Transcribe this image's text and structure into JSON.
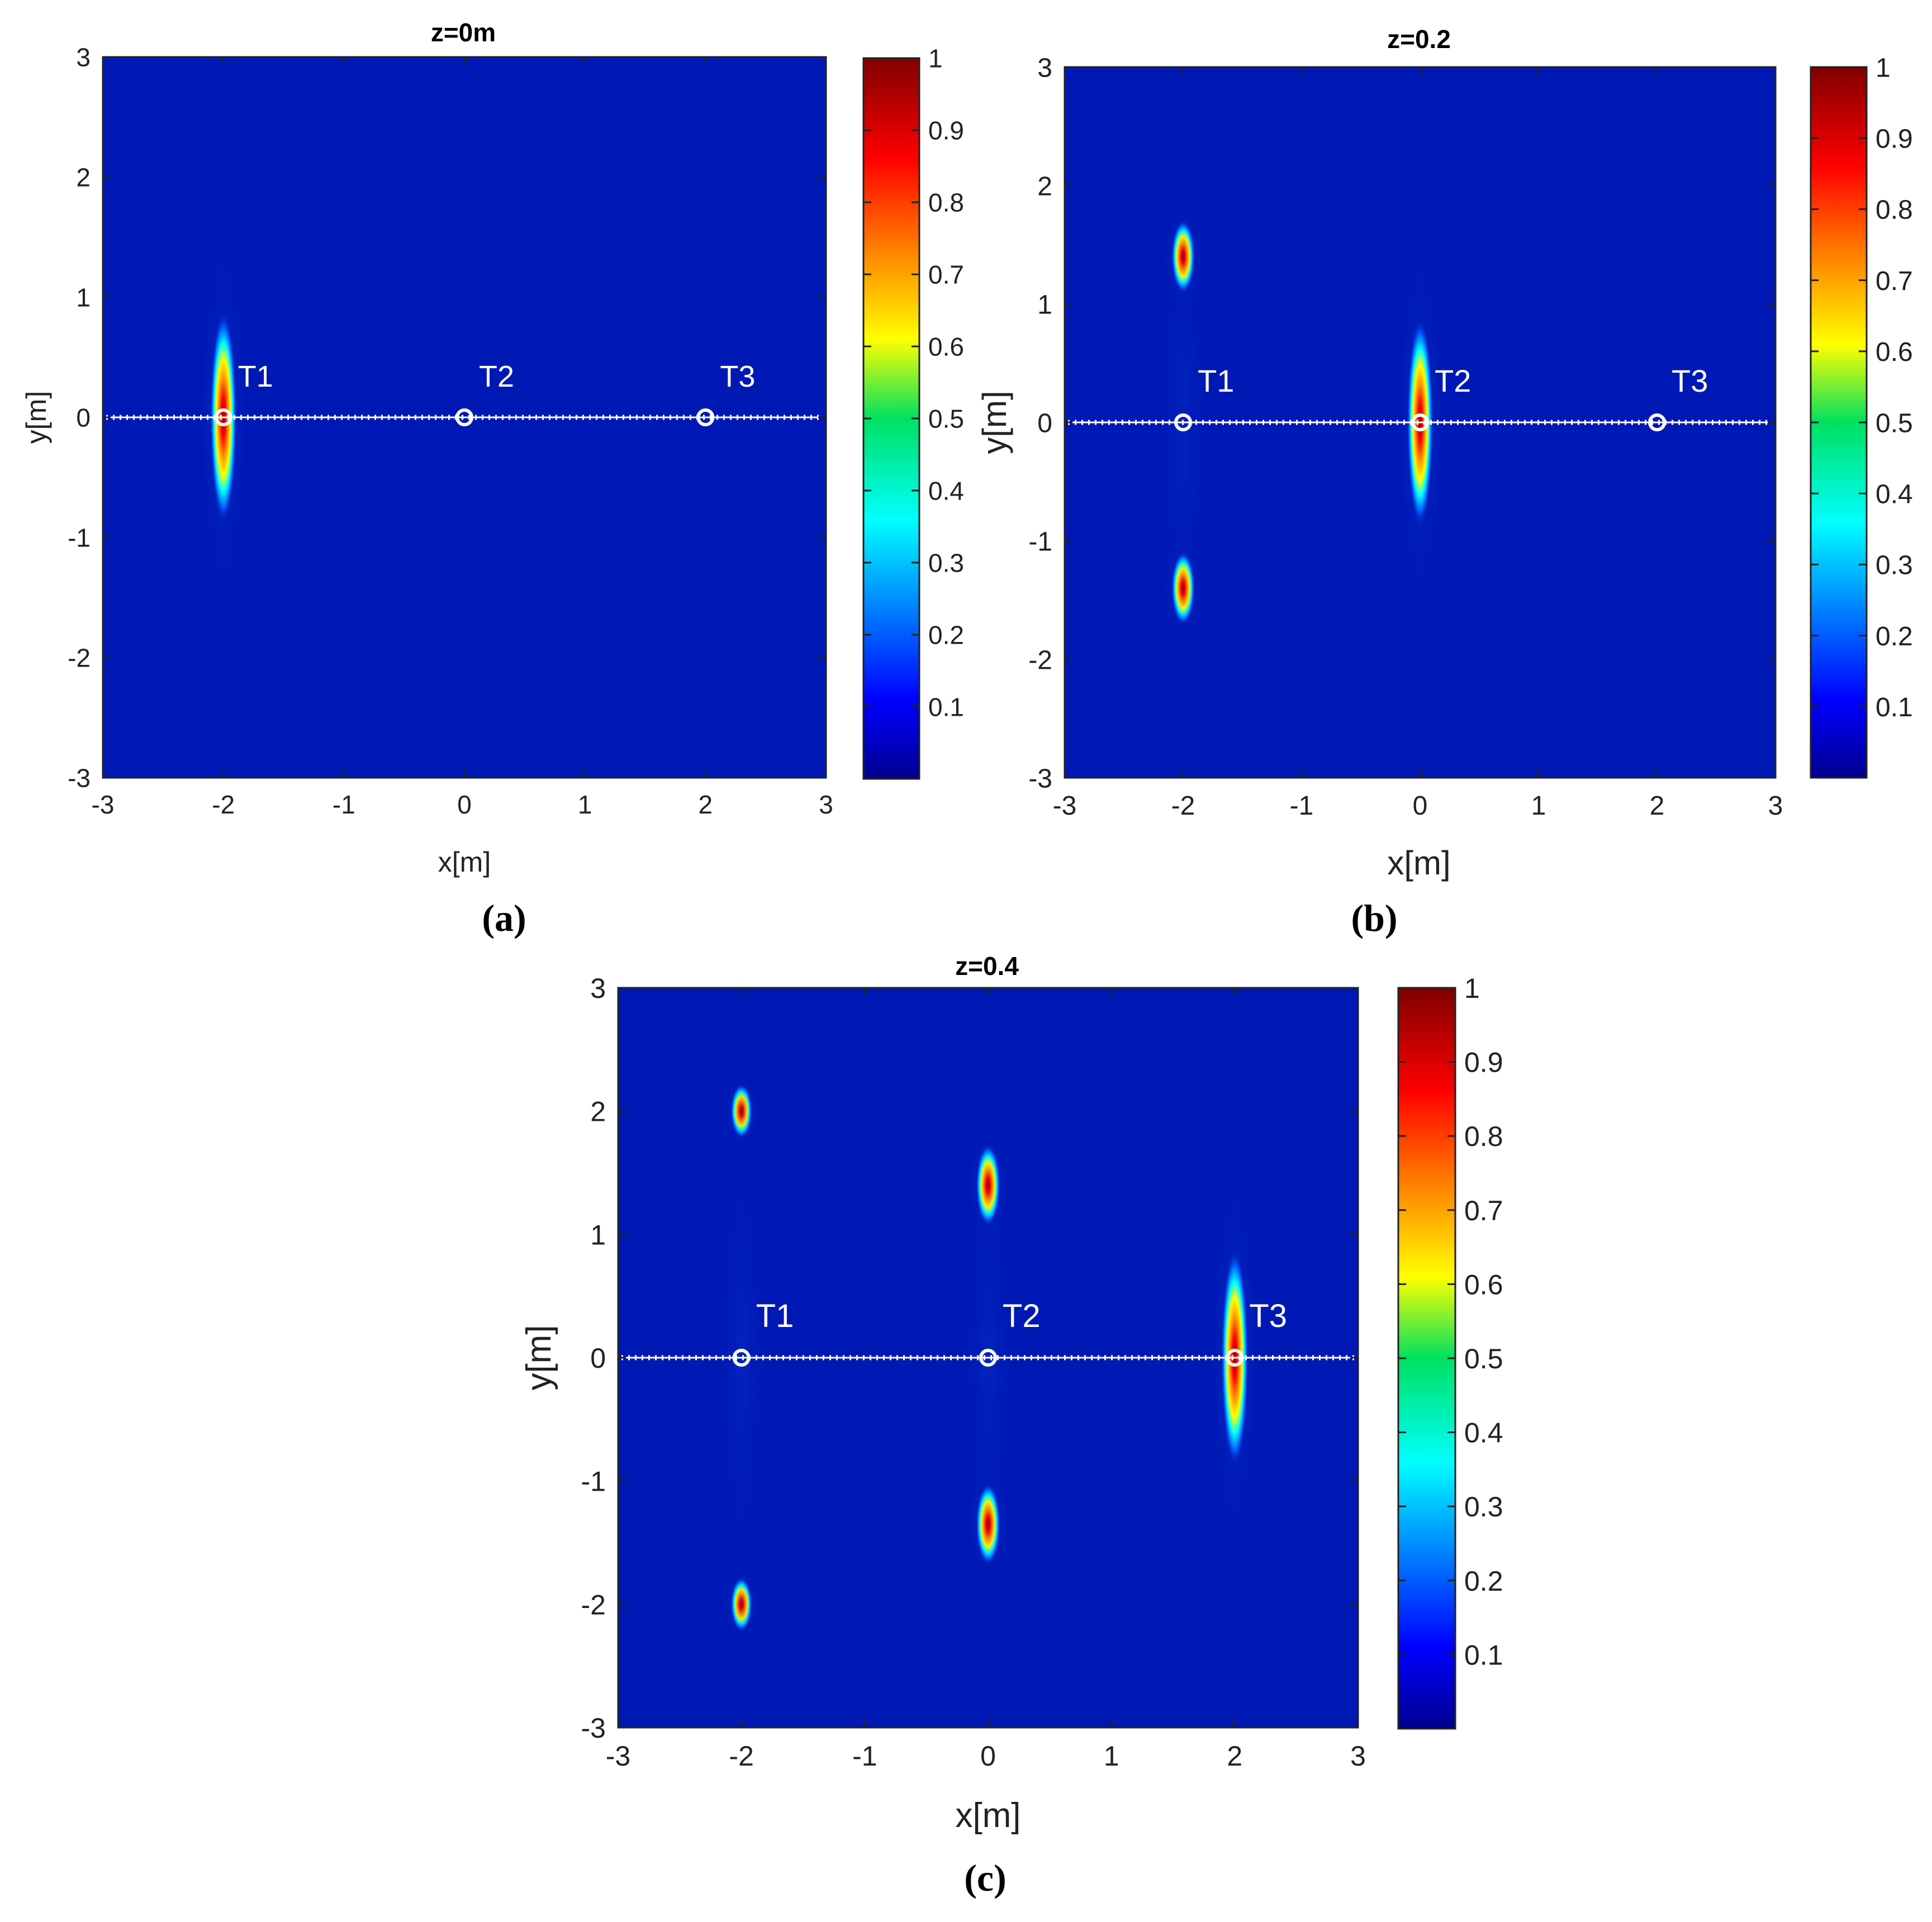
{
  "figure": {
    "sublabels": [
      "(a)",
      "(b)",
      "(c)"
    ]
  },
  "chart_data": [
    {
      "type": "heatmap",
      "panel": "a",
      "title": "z=0m",
      "xlabel": "x[m]",
      "ylabel": "y[m]",
      "xlim": [
        -3,
        3
      ],
      "ylim": [
        -3,
        3
      ],
      "xticks": [
        "-3",
        "-2",
        "-1",
        "0",
        "1",
        "2",
        "3"
      ],
      "yticks": [
        "-3",
        "-2",
        "-1",
        "0",
        "1",
        "2",
        "3"
      ],
      "colormap": "jet",
      "clim": [
        0,
        1
      ],
      "colorbar_ticks": [
        "0.1",
        "0.2",
        "0.3",
        "0.4",
        "0.5",
        "0.6",
        "0.7",
        "0.8",
        "0.9",
        "1"
      ],
      "array_line_y": 0,
      "targets": [
        {
          "label": "T1",
          "x": -2,
          "y": 0
        },
        {
          "label": "T2",
          "x": 0,
          "y": 0
        },
        {
          "label": "T3",
          "x": 2,
          "y": 0
        }
      ],
      "peaks": [
        {
          "x": -2,
          "y": 0,
          "amplitude": 1.0,
          "sx": 0.05,
          "sy": 0.4
        }
      ]
    },
    {
      "type": "heatmap",
      "panel": "b",
      "title": "z=0.2",
      "xlabel": "x[m]",
      "ylabel": "y[m]",
      "xlim": [
        -3,
        3
      ],
      "ylim": [
        -3,
        3
      ],
      "xticks": [
        "-3",
        "-2",
        "-1",
        "0",
        "1",
        "2",
        "3"
      ],
      "yticks": [
        "-3",
        "-2",
        "-1",
        "0",
        "1",
        "2",
        "3"
      ],
      "colormap": "jet",
      "clim": [
        0,
        1
      ],
      "colorbar_ticks": [
        "0.1",
        "0.2",
        "0.3",
        "0.4",
        "0.5",
        "0.6",
        "0.7",
        "0.8",
        "0.9",
        "1"
      ],
      "array_line_y": 0,
      "targets": [
        {
          "label": "T1",
          "x": -2,
          "y": 0
        },
        {
          "label": "T2",
          "x": 0,
          "y": 0
        },
        {
          "label": "T3",
          "x": 2,
          "y": 0
        }
      ],
      "peaks": [
        {
          "x": -2,
          "y": 1.4,
          "amplitude": 0.95,
          "sx": 0.045,
          "sy": 0.14
        },
        {
          "x": -2,
          "y": -1.4,
          "amplitude": 0.95,
          "sx": 0.045,
          "sy": 0.14
        },
        {
          "x": 0,
          "y": 0,
          "amplitude": 1.0,
          "sx": 0.05,
          "sy": 0.4
        }
      ]
    },
    {
      "type": "heatmap",
      "panel": "c",
      "title": "z=0.4",
      "xlabel": "x[m]",
      "ylabel": "y[m]",
      "xlim": [
        -3,
        3
      ],
      "ylim": [
        -3,
        3
      ],
      "xticks": [
        "-3",
        "-2",
        "-1",
        "0",
        "1",
        "2",
        "3"
      ],
      "yticks": [
        "-3",
        "-2",
        "-1",
        "0",
        "1",
        "2",
        "3"
      ],
      "colormap": "jet",
      "clim": [
        0,
        1
      ],
      "colorbar_ticks": [
        "0.1",
        "0.2",
        "0.3",
        "0.4",
        "0.5",
        "0.6",
        "0.7",
        "0.8",
        "0.9",
        "1"
      ],
      "array_line_y": 0,
      "targets": [
        {
          "label": "T1",
          "x": -2,
          "y": 0
        },
        {
          "label": "T2",
          "x": 0,
          "y": 0
        },
        {
          "label": "T3",
          "x": 2,
          "y": 0
        }
      ],
      "peaks": [
        {
          "x": -2,
          "y": 2.0,
          "amplitude": 0.9,
          "sx": 0.04,
          "sy": 0.1
        },
        {
          "x": -2,
          "y": -2.0,
          "amplitude": 0.9,
          "sx": 0.04,
          "sy": 0.1
        },
        {
          "x": 0,
          "y": 1.4,
          "amplitude": 0.95,
          "sx": 0.045,
          "sy": 0.15
        },
        {
          "x": 0,
          "y": -1.35,
          "amplitude": 0.95,
          "sx": 0.045,
          "sy": 0.15
        },
        {
          "x": 2,
          "y": 0,
          "amplitude": 1.0,
          "sx": 0.05,
          "sy": 0.4
        }
      ]
    }
  ]
}
